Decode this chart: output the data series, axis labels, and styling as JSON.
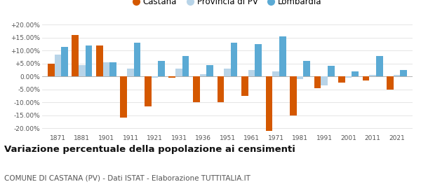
{
  "years": [
    1871,
    1881,
    1901,
    1911,
    1921,
    1931,
    1936,
    1951,
    1961,
    1971,
    1981,
    1991,
    2001,
    2011,
    2021
  ],
  "castana": [
    5.0,
    16.0,
    12.0,
    -16.0,
    -11.5,
    -0.5,
    -10.0,
    -10.0,
    -7.5,
    -21.0,
    -15.0,
    -4.5,
    -2.5,
    -1.5,
    -5.0
  ],
  "provincia_pv": [
    8.5,
    4.5,
    5.5,
    3.0,
    -0.5,
    3.0,
    1.0,
    3.0,
    2.5,
    2.0,
    -1.0,
    -3.5,
    -0.5,
    0.5,
    0.5
  ],
  "lombardia": [
    11.5,
    12.0,
    5.5,
    13.0,
    6.0,
    8.0,
    4.5,
    13.0,
    12.5,
    15.5,
    6.0,
    4.0,
    2.0,
    8.0,
    2.5
  ],
  "castana_color": "#d45800",
  "provincia_color": "#b8d4e8",
  "lombardia_color": "#5baad4",
  "title": "Variazione percentuale della popolazione ai censimenti",
  "subtitle": "COMUNE DI CASTANA (PV) - Dati ISTAT - Elaborazione TUTTITALIA.IT",
  "legend_labels": [
    "Castana",
    "Provincia di PV",
    "Lombardia"
  ],
  "ylim": [
    -22,
    22
  ],
  "yticks": [
    -20,
    -15,
    -10,
    -5,
    0,
    5,
    10,
    15,
    20
  ],
  "background_color": "#ffffff",
  "grid_color": "#e0e0e0",
  "title_fontsize": 9.5,
  "subtitle_fontsize": 7.5
}
